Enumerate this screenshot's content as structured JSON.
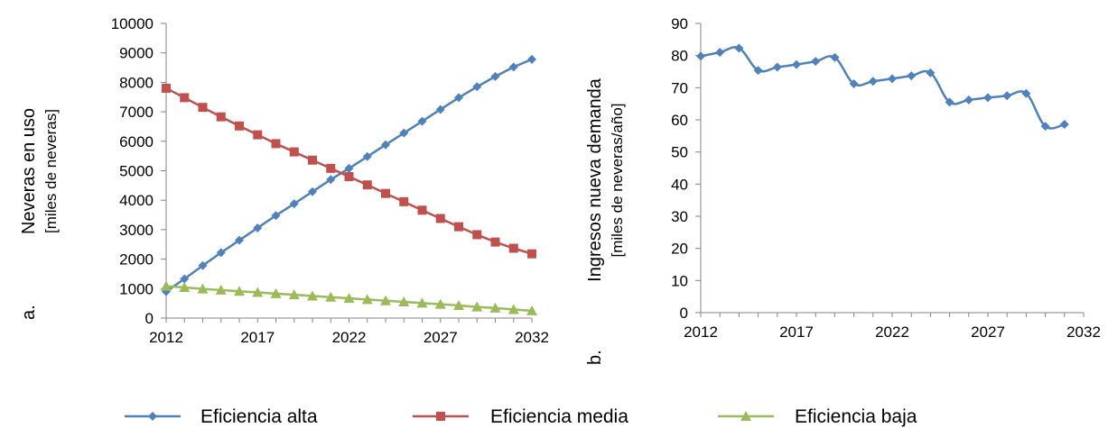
{
  "chart_data": [
    {
      "type": "line",
      "panel_label": "a.",
      "ylabel": "Neveras en uso",
      "ylabel_units": "[miles de neveras]",
      "xlabel": "",
      "xlim": [
        2012,
        2032
      ],
      "ylim": [
        0,
        10000
      ],
      "x_ticks": [
        2012,
        2017,
        2022,
        2027,
        2032
      ],
      "y_ticks": [
        0,
        1000,
        2000,
        3000,
        4000,
        5000,
        6000,
        7000,
        8000,
        9000,
        10000
      ],
      "grid": false,
      "x": [
        2012,
        2013,
        2014,
        2015,
        2016,
        2017,
        2018,
        2019,
        2020,
        2021,
        2022,
        2023,
        2024,
        2025,
        2026,
        2027,
        2028,
        2029,
        2030,
        2031,
        2032
      ],
      "series": [
        {
          "name": "Eficiencia alta",
          "color": "#4F81BD",
          "marker": "diamond",
          "values": [
            900,
            1330,
            1780,
            2220,
            2640,
            3060,
            3480,
            3880,
            4290,
            4700,
            5080,
            5480,
            5880,
            6280,
            6680,
            7080,
            7480,
            7850,
            8200,
            8520,
            8780
          ]
        },
        {
          "name": "Eficiencia media",
          "color": "#C0504D",
          "marker": "square",
          "values": [
            7800,
            7480,
            7150,
            6830,
            6520,
            6220,
            5920,
            5640,
            5360,
            5080,
            4800,
            4520,
            4230,
            3950,
            3660,
            3380,
            3100,
            2830,
            2580,
            2370,
            2180
          ]
        },
        {
          "name": "Eficiencia baja",
          "color": "#9BBB59",
          "marker": "triangle",
          "values": [
            1080,
            1040,
            990,
            950,
            910,
            870,
            830,
            790,
            750,
            710,
            670,
            630,
            590,
            550,
            510,
            470,
            430,
            380,
            340,
            290,
            250
          ]
        }
      ]
    },
    {
      "type": "line",
      "panel_label": "b.",
      "ylabel": "Ingresos nueva demanda",
      "ylabel_units": "[miles de neveras/año]",
      "xlabel": "",
      "xlim": [
        2012,
        2032
      ],
      "ylim": [
        0,
        90
      ],
      "x_ticks": [
        2012,
        2017,
        2022,
        2027,
        2032
      ],
      "y_ticks": [
        0,
        10,
        20,
        30,
        40,
        50,
        60,
        70,
        80,
        90
      ],
      "grid": false,
      "x": [
        2012,
        2013,
        2014,
        2015,
        2016,
        2017,
        2018,
        2019,
        2020,
        2021,
        2022,
        2023,
        2024,
        2025,
        2026,
        2027,
        2028,
        2029,
        2030,
        2031
      ],
      "series": [
        {
          "color": "#4F81BD",
          "marker": "diamond",
          "values": [
            79.8,
            81.0,
            82.3,
            75.4,
            76.4,
            77.2,
            78.2,
            79.4,
            71.2,
            72.0,
            72.8,
            73.7,
            74.6,
            65.5,
            66.2,
            66.9,
            67.5,
            68.2,
            58.0,
            58.6
          ]
        }
      ]
    }
  ],
  "legend": {
    "position": "bottom-center",
    "items": [
      {
        "label": "Eficiencia alta",
        "color": "#4F81BD",
        "marker": "diamond"
      },
      {
        "label": "Eficiencia media",
        "color": "#C0504D",
        "marker": "square"
      },
      {
        "label": "Eficiencia baja",
        "color": "#9BBB59",
        "marker": "triangle"
      }
    ]
  }
}
